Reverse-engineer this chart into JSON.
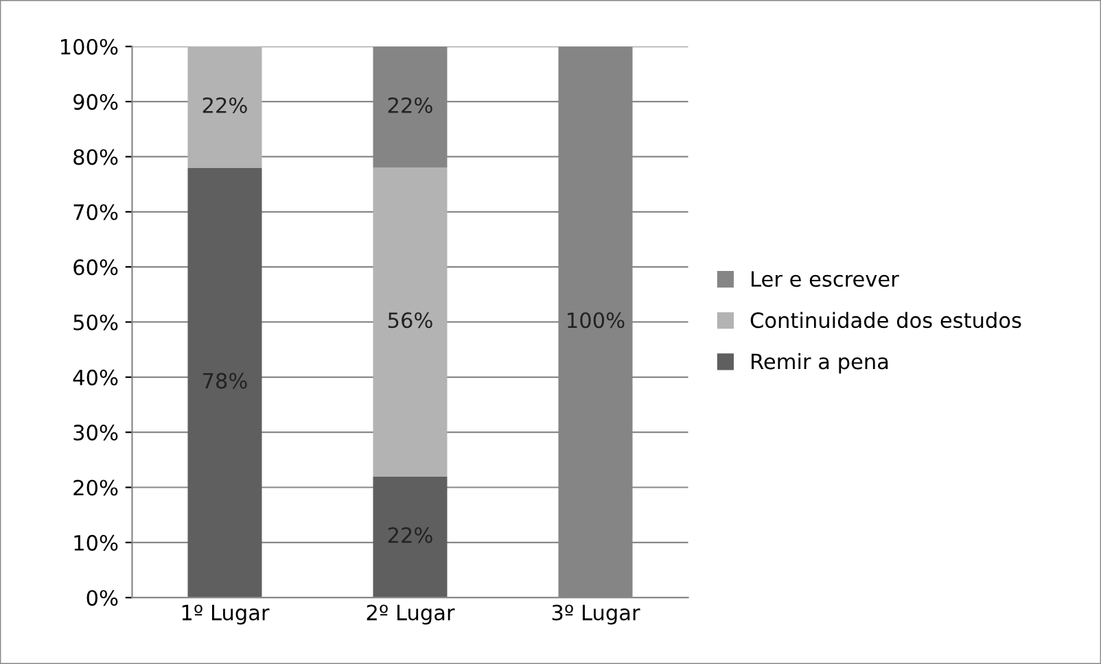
{
  "chart_data": {
    "type": "bar",
    "stacked": true,
    "categories": [
      "1º Lugar",
      "2º Lugar",
      "3º Lugar"
    ],
    "series": [
      {
        "name": "Remir a pena",
        "color": "#5f5f5f",
        "values": [
          78,
          22,
          0
        ],
        "value_labels": [
          "78%",
          "22%",
          null
        ]
      },
      {
        "name": "Continuidade dos estudos",
        "color": "#b3b3b3",
        "values": [
          22,
          56,
          0
        ],
        "value_labels": [
          "22%",
          "56%",
          null
        ]
      },
      {
        "name": "Ler e escrever",
        "color": "#858585",
        "values": [
          0,
          22,
          100
        ],
        "value_labels": [
          null,
          "22%",
          "100%"
        ]
      }
    ],
    "ylim": [
      0,
      100
    ],
    "yticks": [
      {
        "value": 0,
        "label": "0%"
      },
      {
        "value": 10,
        "label": "10%"
      },
      {
        "value": 20,
        "label": "20%"
      },
      {
        "value": 30,
        "label": "30%"
      },
      {
        "value": 40,
        "label": "40%"
      },
      {
        "value": 50,
        "label": "50%"
      },
      {
        "value": 60,
        "label": "60%"
      },
      {
        "value": 70,
        "label": "70%"
      },
      {
        "value": 80,
        "label": "80%"
      },
      {
        "value": 90,
        "label": "90%"
      },
      {
        "value": 100,
        "label": "100%"
      }
    ],
    "grid": "y",
    "legend": "right"
  }
}
